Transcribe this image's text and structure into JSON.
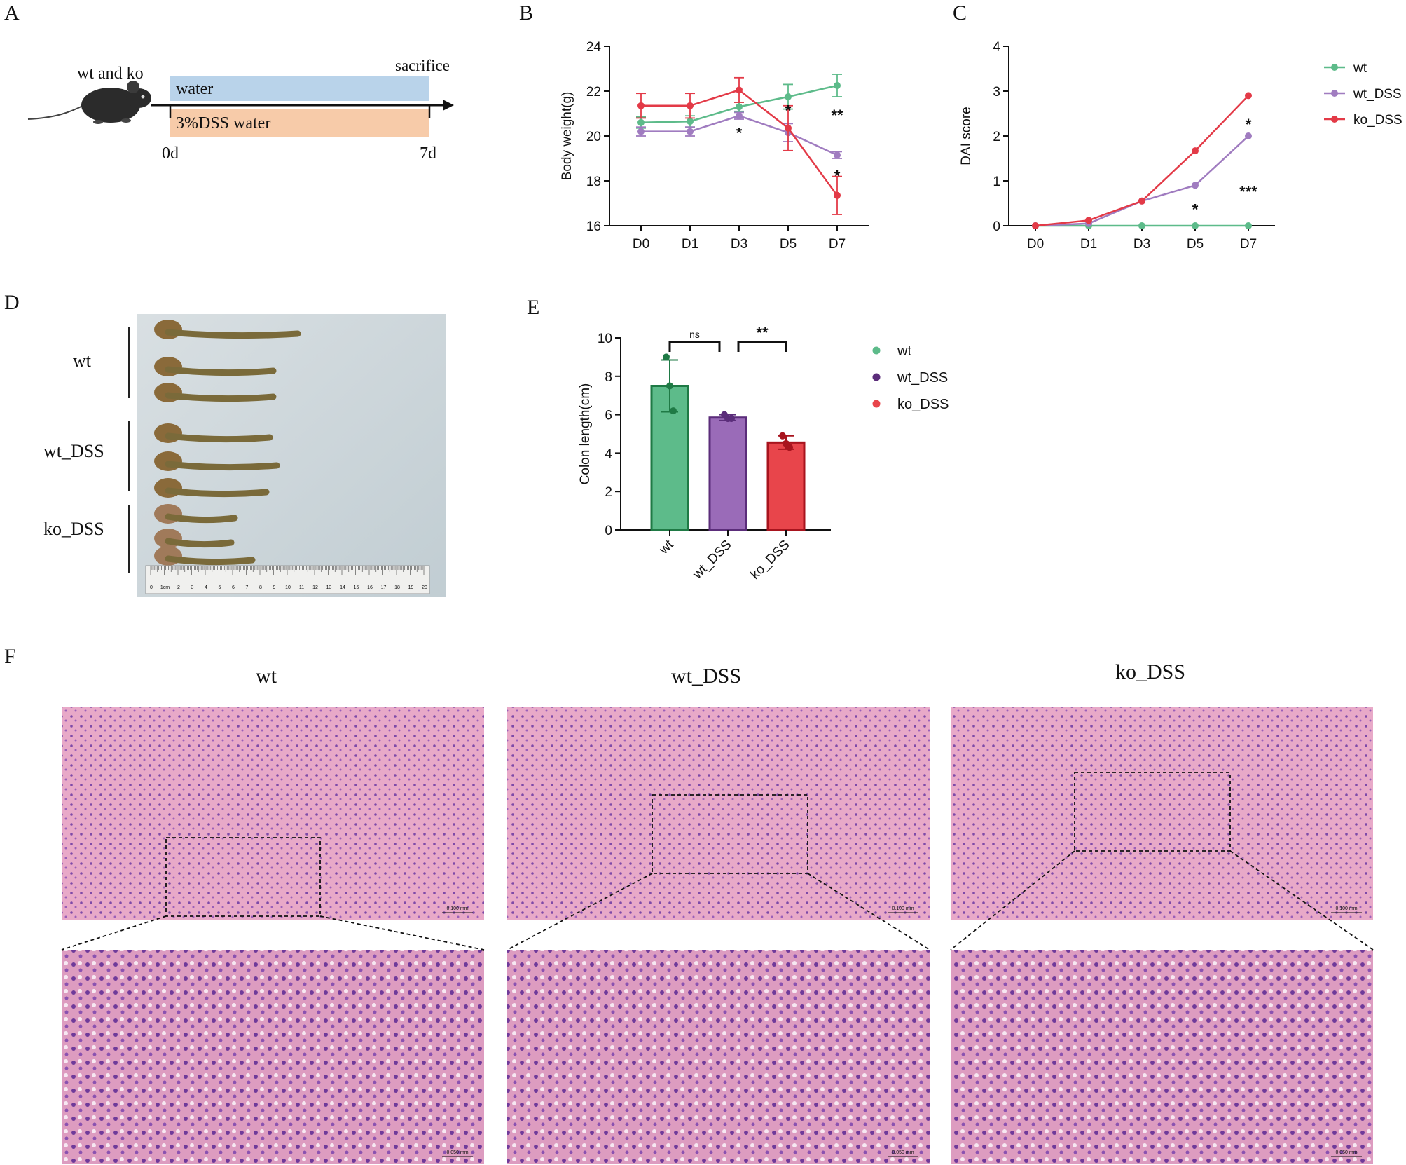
{
  "panels": [
    "A",
    "B",
    "C",
    "D",
    "E",
    "F"
  ],
  "schematic": {
    "mouse_label": "wt and ko",
    "sacrifice": "sacrifice",
    "water": "water",
    "dss_water": "3%DSS water",
    "start": "0d",
    "end": "7d",
    "colors": {
      "water": "#b9d3ea",
      "dss": "#f7cba9"
    }
  },
  "legend_lines": [
    "wt",
    "wt_DSS",
    "ko_DSS"
  ],
  "legend_dots": [
    "wt",
    "wt_DSS",
    "ko_DSS"
  ],
  "colors": {
    "wt": "#5dbb8a",
    "wt_DSS": "#a07cc0",
    "ko_DSS": "#e33a47",
    "wt_bar": "#5dbb8a",
    "wt_DSS_bar": "#9a6bb8",
    "ko_DSS_bar": "#e8454b"
  },
  "photo": {
    "labels": [
      "wt",
      "wt_DSS",
      "ko_DSS"
    ],
    "ruler_ticks": [
      "0",
      "1cm",
      "2",
      "3",
      "4",
      "5",
      "6",
      "7",
      "8",
      "9",
      "10",
      "11",
      "12",
      "13",
      "14",
      "15",
      "16",
      "17",
      "18",
      "19",
      "20"
    ]
  },
  "histology": {
    "titles": [
      "wt",
      "wt_DSS",
      "ko_DSS"
    ],
    "scale_top": "0.100 mm",
    "scale_bottom": "0.050 mm"
  },
  "chart_data": [
    {
      "panel": "B",
      "type": "line",
      "ylabel": "Body weight(g)",
      "xlabel": "",
      "categories": [
        "D0",
        "D1",
        "D3",
        "D5",
        "D7"
      ],
      "ylim": [
        16,
        24
      ],
      "yticks": [
        16,
        18,
        20,
        22,
        24
      ],
      "series": [
        {
          "name": "wt",
          "values": [
            20.6,
            20.65,
            21.3,
            21.75,
            22.25
          ],
          "err": [
            0.25,
            0.25,
            0.2,
            0.55,
            0.5
          ]
        },
        {
          "name": "wt_DSS",
          "values": [
            20.2,
            20.2,
            20.9,
            20.15,
            19.15
          ],
          "err": [
            0.2,
            0.2,
            0.15,
            0.4,
            0.15
          ]
        },
        {
          "name": "ko_DSS",
          "values": [
            21.35,
            21.35,
            22.05,
            20.35,
            17.35
          ],
          "err": [
            0.55,
            0.55,
            0.55,
            1.0,
            0.85
          ]
        }
      ],
      "annotations": [
        {
          "x": "D3",
          "y": 20.2,
          "text": "*"
        },
        {
          "x": "D5",
          "y": 21.2,
          "text": "*"
        },
        {
          "x": "D7",
          "y": 21.0,
          "text": "**"
        },
        {
          "x": "D7",
          "y": 18.3,
          "text": "*"
        }
      ]
    },
    {
      "panel": "C",
      "type": "line",
      "ylabel": "DAI score",
      "xlabel": "",
      "categories": [
        "D0",
        "D1",
        "D3",
        "D5",
        "D7"
      ],
      "ylim": [
        0,
        4
      ],
      "yticks": [
        0,
        1,
        2,
        3,
        4
      ],
      "series": [
        {
          "name": "wt",
          "values": [
            0,
            0,
            0,
            0,
            0
          ]
        },
        {
          "name": "wt_DSS",
          "values": [
            0,
            0.05,
            0.55,
            0.9,
            2.0
          ]
        },
        {
          "name": "ko_DSS",
          "values": [
            0,
            0.12,
            0.55,
            1.67,
            2.9
          ]
        }
      ],
      "annotations": [
        {
          "x": "D7",
          "y": 2.3,
          "text": "*"
        },
        {
          "x": "D5",
          "y": 0.4,
          "text": "*"
        },
        {
          "x": "D7",
          "y": 0.8,
          "text": "***"
        }
      ]
    },
    {
      "panel": "E",
      "type": "bar",
      "ylabel": "Colon length(cm)",
      "xlabel": "",
      "categories": [
        "wt",
        "wt_DSS",
        "ko_DSS"
      ],
      "values": [
        7.5,
        5.85,
        4.55
      ],
      "err": [
        1.35,
        0.15,
        0.35
      ],
      "points": [
        [
          9.0,
          7.5,
          6.2
        ],
        [
          6.0,
          5.8,
          5.8
        ],
        [
          4.9,
          4.5,
          4.3
        ]
      ],
      "ylim": [
        0,
        10
      ],
      "yticks": [
        0,
        2,
        4,
        6,
        8,
        10
      ],
      "significance": [
        {
          "from": "wt",
          "to": "wt_DSS",
          "text": "ns"
        },
        {
          "from": "wt_DSS",
          "to": "ko_DSS",
          "text": "**"
        }
      ]
    }
  ]
}
